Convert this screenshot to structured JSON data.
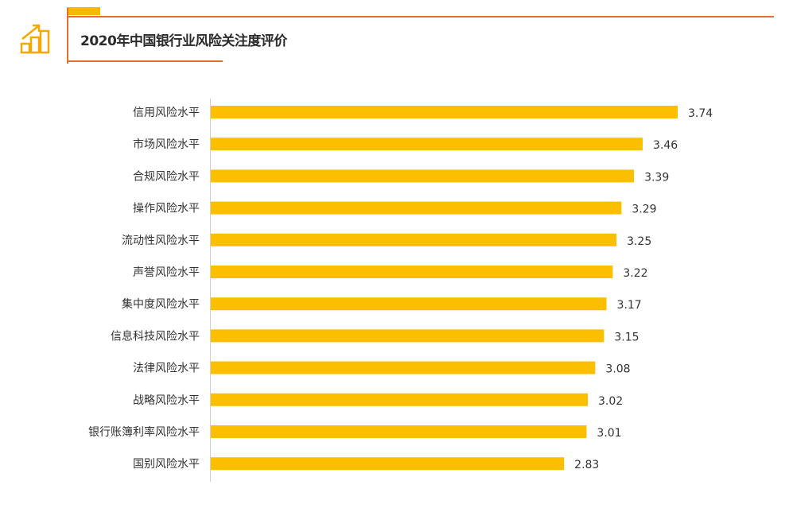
{
  "title": "2020年中国银行业风险关注度评价",
  "icon": "bar-chart-growth-icon",
  "colors": {
    "bar": "#fbbf00",
    "accent": "#e5702d",
    "accent_block": "#f7b800"
  },
  "chart_data": {
    "type": "bar",
    "orientation": "horizontal",
    "title": "",
    "xlabel": "",
    "ylabel": "",
    "categories": [
      "信用风险水平",
      "市场风险水平",
      "合规风险水平",
      "操作风险水平",
      "流动性风险水平",
      "声誉风险水平",
      "集中度风险水平",
      "信息科技风险水平",
      "法律风险水平",
      "战略风险水平",
      "银行账簿利率风险水平",
      "国别风险水平"
    ],
    "values": [
      3.74,
      3.46,
      3.39,
      3.29,
      3.25,
      3.22,
      3.17,
      3.15,
      3.08,
      3.02,
      3.01,
      2.83
    ],
    "value_labels": [
      "3.74",
      "3.46",
      "3.39",
      "3.29",
      "3.25",
      "3.22",
      "3.17",
      "3.15",
      "3.08",
      "3.02",
      "3.01",
      "2.83"
    ],
    "xlim": [
      0,
      3.74
    ],
    "grid": false,
    "legend": "none",
    "data_labels": true
  }
}
